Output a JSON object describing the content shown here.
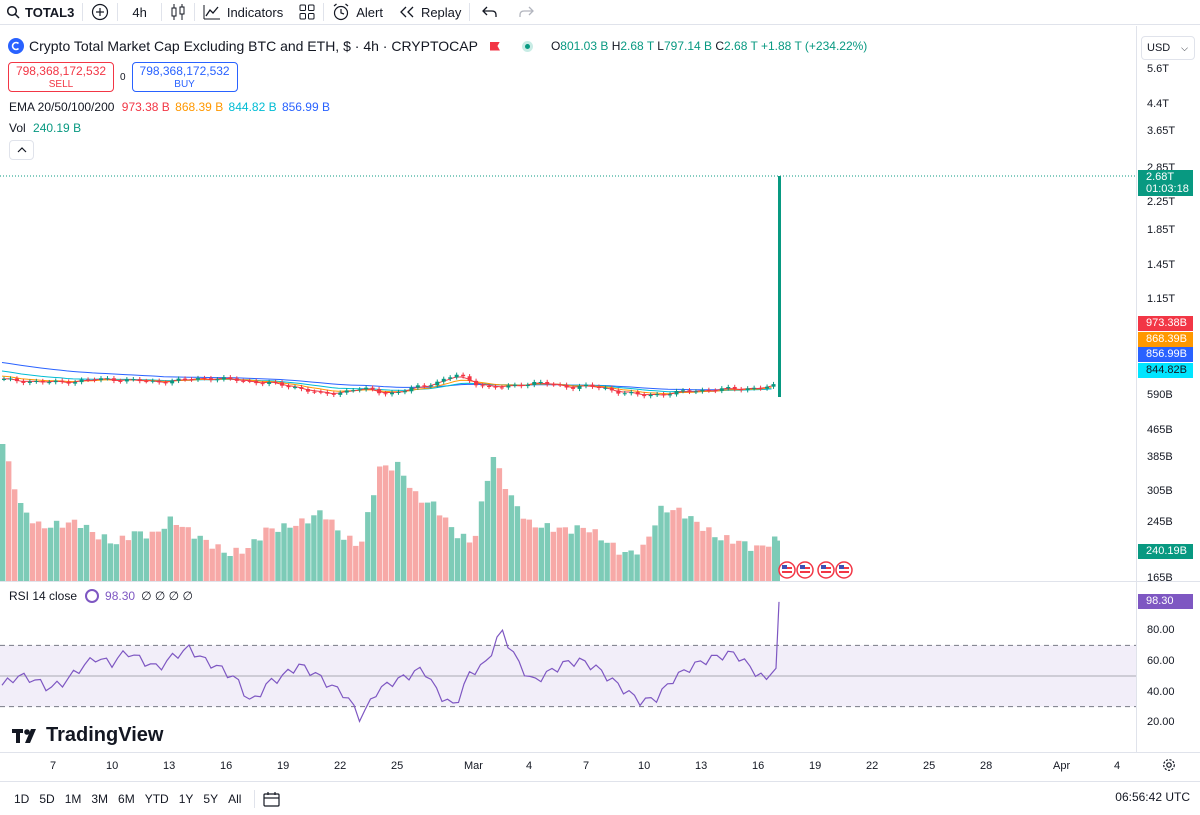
{
  "toolbar": {
    "symbol": "TOTAL3",
    "interval": "4h",
    "indicators_label": "Indicators",
    "alert_label": "Alert",
    "replay_label": "Replay"
  },
  "legend": {
    "title": "Crypto Total Market Cap Excluding BTC and ETH, $ · 4h · CRYPTOCAP",
    "o_label": "O",
    "o": "801.03 B",
    "h_label": "H",
    "h": "2.68 T",
    "l_label": "L",
    "l": "797.14 B",
    "c_label": "C",
    "c": "2.68 T",
    "change": "+1.88 T (+234.22%)"
  },
  "trade": {
    "sell_price": "798,368,172,532",
    "sell_label": "SELL",
    "spread": "0",
    "buy_price": "798,368,172,532",
    "buy_label": "BUY"
  },
  "ema": {
    "label": "EMA 20/50/100/200",
    "v20": "973.38 B",
    "v50": "868.39 B",
    "v100": "844.82 B",
    "v200": "856.99 B"
  },
  "vol": {
    "label": "Vol",
    "value": "240.19 B"
  },
  "rsi": {
    "label": "RSI 14 close",
    "value": "98.30",
    "extra": "∅ ∅ ∅ ∅"
  },
  "price_scale": {
    "currency": "USD",
    "ticks": [
      "5.6T",
      "4.4T",
      "3.65T",
      "2.85T",
      "2.25T",
      "1.85T",
      "1.45T",
      "1.15T",
      "590B",
      "465B",
      "385B",
      "305B",
      "245B",
      "165B"
    ],
    "last_price": "2.68T",
    "countdown": "01:03:18",
    "ema_badges": [
      "973.38B",
      "868.39B",
      "856.99B",
      "844.82B"
    ],
    "vol_badge": "240.19B"
  },
  "rsi_scale": {
    "ticks": [
      "80.00",
      "60.00",
      "40.00",
      "20.00"
    ],
    "badge": "98.30"
  },
  "time_axis": [
    "7",
    "10",
    "13",
    "16",
    "19",
    "22",
    "25",
    "Mar",
    "4",
    "7",
    "10",
    "13",
    "16",
    "19",
    "22",
    "25",
    "28",
    "Apr",
    "4"
  ],
  "ranges": [
    "1D",
    "5D",
    "1M",
    "3M",
    "6M",
    "YTD",
    "1Y",
    "5Y",
    "All"
  ],
  "clock": "06:56:42 UTC",
  "brand": "TradingView",
  "colors": {
    "up": "#089981",
    "down": "#f23645",
    "ema20": "#f23645",
    "ema50": "#ff9800",
    "ema100": "#00bcd4",
    "ema200": "#2962ff",
    "rsi": "#7e57c2"
  },
  "chart_data": {
    "type": "candlestick",
    "title": "Crypto Total Market Cap Excluding BTC and ETH, $ · 4h · CRYPTOCAP",
    "x": [
      "7",
      "10",
      "13",
      "16",
      "19",
      "22",
      "25",
      "Mar",
      "4",
      "7",
      "10",
      "13",
      "16",
      "19",
      "22",
      "25",
      "28",
      "Apr",
      "4"
    ],
    "ohlc_last": {
      "open": "801.03 B",
      "high": "2.68 T",
      "low": "797.14 B",
      "close": "2.68 T"
    },
    "price_profile": [
      880,
      875,
      870,
      868,
      872,
      878,
      884,
      880,
      876,
      870,
      874,
      882,
      888,
      885,
      878,
      870,
      862,
      850,
      835,
      812,
      820,
      838,
      832,
      815,
      830,
      852,
      872,
      905,
      870,
      842,
      846,
      860,
      866,
      854,
      846,
      850,
      838,
      820,
      808,
      812,
      818,
      828,
      832,
      836,
      838,
      842,
      850,
      2680
    ],
    "ema_last": {
      "ema20": 973.38,
      "ema50": 868.39,
      "ema100": 844.82,
      "ema200": 856.99
    },
    "volume_last": 240.19,
    "volume_profile": [
      420,
      300,
      265,
      270,
      275,
      250,
      235,
      255,
      250,
      280,
      255,
      235,
      215,
      225,
      260,
      265,
      275,
      295,
      250,
      230,
      375,
      380,
      320,
      305,
      255,
      235,
      400,
      320,
      270,
      265,
      260,
      265,
      240,
      215,
      225,
      300,
      295,
      270,
      245,
      240,
      225,
      240
    ],
    "rsi_last": 98.3,
    "rsi_profile": [
      44,
      50,
      48,
      42,
      46,
      55,
      62,
      58,
      66,
      60,
      55,
      63,
      68,
      60,
      55,
      48,
      32,
      45,
      50,
      57,
      52,
      44,
      38,
      22,
      40,
      46,
      50,
      55,
      38,
      30,
      52,
      58,
      80,
      60,
      46,
      52,
      58,
      60,
      56,
      48,
      40,
      33,
      36,
      48,
      55,
      60,
      63,
      65,
      55,
      47,
      98.3
    ],
    "rsi_bands": [
      30,
      70
    ]
  }
}
